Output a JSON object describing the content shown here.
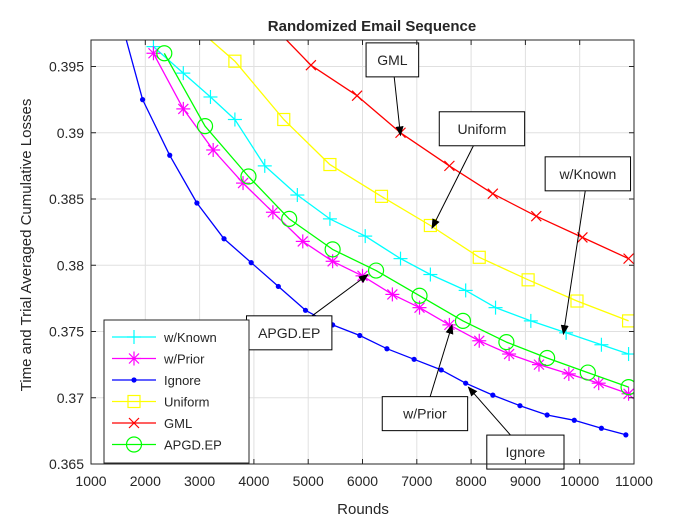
{
  "chart_data": {
    "type": "line",
    "title": "Randomized Email Sequence",
    "xlabel": "Rounds",
    "ylabel": "Time and Trial Averaged Cumulative Losses",
    "xlim": [
      1000,
      11000
    ],
    "ylim": [
      0.365,
      0.397
    ],
    "xticks": [
      "1000",
      "2000",
      "3000",
      "4000",
      "5000",
      "6000",
      "7000",
      "8000",
      "9000",
      "10000",
      "11000"
    ],
    "yticks": [
      "0.365",
      "0.37",
      "0.375",
      "0.38",
      "0.385",
      "0.39",
      "0.395"
    ],
    "grid": true,
    "legend_position": "bottom-left",
    "series": [
      {
        "name": "w/Known",
        "color": "#00ffff",
        "marker": "plus",
        "x": [
          2150,
          2700,
          3200,
          3650,
          4200,
          4800,
          5400,
          6050,
          6700,
          7250,
          7900,
          8450,
          9100,
          9750,
          10400,
          10900
        ],
        "y": [
          0.3965,
          0.3945,
          0.3927,
          0.391,
          0.3875,
          0.3853,
          0.3835,
          0.3822,
          0.3805,
          0.3793,
          0.3781,
          0.3768,
          0.3758,
          0.3749,
          0.374,
          0.3733
        ]
      },
      {
        "name": "w/Prior",
        "color": "#ff00ff",
        "marker": "star",
        "x": [
          2150,
          2700,
          3250,
          3800,
          4350,
          4900,
          5450,
          6000,
          6550,
          7050,
          7600,
          8150,
          8700,
          9250,
          9800,
          10350,
          10900
        ],
        "y": [
          0.396,
          0.3918,
          0.3887,
          0.3862,
          0.384,
          0.3818,
          0.3803,
          0.3792,
          0.3778,
          0.3768,
          0.3755,
          0.3743,
          0.3733,
          0.3725,
          0.3718,
          0.3711,
          0.3703
        ]
      },
      {
        "name": "Ignore",
        "color": "#0000ff",
        "marker": "dot",
        "x": [
          1650,
          1950,
          2450,
          2950,
          3450,
          3950,
          4450,
          4950,
          5450,
          5950,
          6450,
          6950,
          7450,
          7900,
          8400,
          8900,
          9400,
          9900,
          10400,
          10850
        ],
        "y": [
          0.397,
          0.3925,
          0.3883,
          0.3847,
          0.382,
          0.3802,
          0.3784,
          0.3766,
          0.3755,
          0.3747,
          0.3737,
          0.3729,
          0.3721,
          0.3711,
          0.3702,
          0.3694,
          0.3687,
          0.3683,
          0.3677,
          0.3672
        ]
      },
      {
        "name": "Uniform",
        "color": "#ffff00",
        "marker": "square",
        "x": [
          3200,
          3650,
          4550,
          5400,
          6350,
          7250,
          8150,
          9050,
          9950,
          10900
        ],
        "y": [
          0.397,
          0.3954,
          0.391,
          0.3876,
          0.3852,
          0.383,
          0.3806,
          0.3789,
          0.3773,
          0.3758
        ]
      },
      {
        "name": "GML",
        "color": "#ff0000",
        "marker": "x",
        "x": [
          4600,
          5050,
          5900,
          6700,
          7600,
          8400,
          9200,
          10050,
          10900
        ],
        "y": [
          0.397,
          0.3951,
          0.3928,
          0.39,
          0.3875,
          0.3854,
          0.3837,
          0.3821,
          0.3805
        ]
      },
      {
        "name": "APGD.EP",
        "color": "#00ff00",
        "marker": "circle",
        "x": [
          2350,
          3100,
          3900,
          4650,
          5450,
          6250,
          7050,
          7850,
          8650,
          9400,
          10150,
          10900
        ],
        "y": [
          0.396,
          0.3905,
          0.3867,
          0.3835,
          0.3812,
          0.3796,
          0.3777,
          0.3758,
          0.3742,
          0.373,
          0.3719,
          0.3708
        ]
      }
    ],
    "annotations": [
      {
        "text": "GML",
        "box_x": 6550,
        "box_y": 0.3955,
        "arrow_x": 6700,
        "arrow_y": 0.3898
      },
      {
        "text": "Uniform",
        "box_x": 8200,
        "box_y": 0.3903,
        "arrow_x": 7280,
        "arrow_y": 0.3828
      },
      {
        "text": "w/Known",
        "box_x": 10150,
        "box_y": 0.3869,
        "arrow_x": 9700,
        "arrow_y": 0.3748
      },
      {
        "text": "APGD.EP",
        "box_x": 4650,
        "box_y": 0.3749,
        "arrow_x": 6100,
        "arrow_y": 0.3793
      },
      {
        "text": "w/Prior",
        "box_x": 7150,
        "box_y": 0.3688,
        "arrow_x": 7650,
        "arrow_y": 0.3755
      },
      {
        "text": "Ignore",
        "box_x": 9000,
        "box_y": 0.3659,
        "arrow_x": 7950,
        "arrow_y": 0.3708
      }
    ]
  }
}
